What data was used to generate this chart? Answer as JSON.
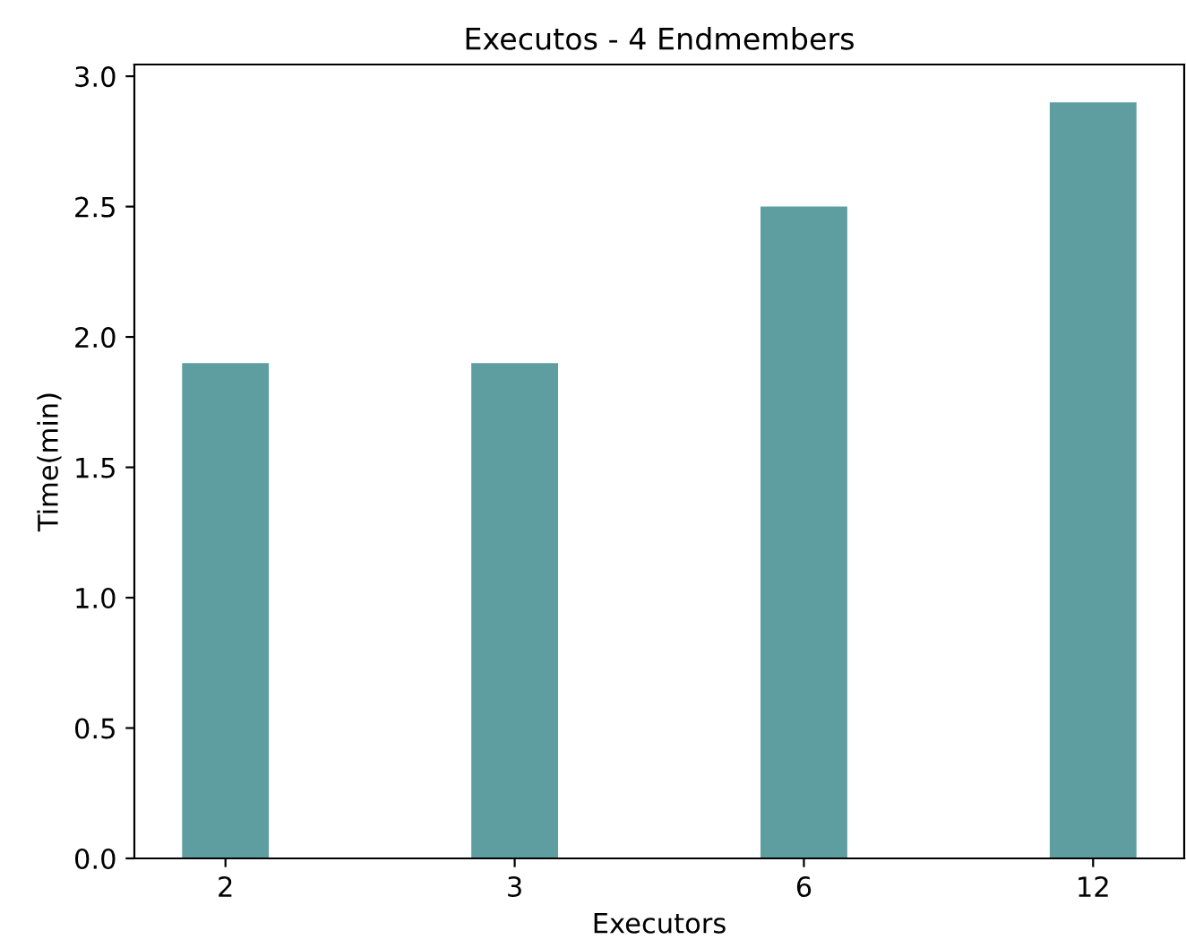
{
  "chart_data": {
    "type": "bar",
    "title": "Executos - 4 Endmembers",
    "xlabel": "Executors",
    "ylabel": "Time(min)",
    "categories": [
      "2",
      "3",
      "6",
      "12"
    ],
    "values": [
      1.9,
      1.9,
      2.5,
      2.9
    ],
    "color": "#5f9ea0",
    "ylim": [
      0,
      3.045
    ],
    "yticks": [
      {
        "value": 0,
        "label": "0.0"
      },
      {
        "value": 0.5,
        "label": "0.5"
      },
      {
        "value": 1,
        "label": "1.0"
      },
      {
        "value": 1.5,
        "label": "1.5"
      },
      {
        "value": 2,
        "label": "2.0"
      },
      {
        "value": 2.5,
        "label": "2.5"
      },
      {
        "value": 3,
        "label": "3.0"
      }
    ],
    "grid": false
  }
}
